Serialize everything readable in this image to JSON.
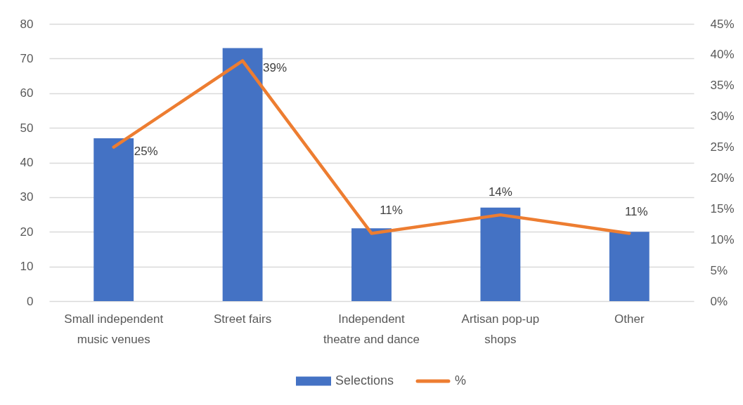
{
  "chart_data": {
    "type": "bar",
    "categories": [
      "Small independent music venues",
      "Street fairs",
      "Independent theatre and dance",
      "Artisan pop-up shops",
      "Other"
    ],
    "series": [
      {
        "name": "Selections",
        "color": "#4472c4",
        "values": [
          47,
          73,
          21,
          27,
          20
        ]
      },
      {
        "name": "%",
        "type": "line",
        "axis": "y2",
        "color": "#ed7d31",
        "values": [
          25,
          39,
          11,
          14,
          11
        ],
        "value_labels": [
          "25%",
          "39%",
          "11%",
          "14%",
          "11%"
        ]
      }
    ],
    "ylim": [
      0,
      80
    ],
    "yticks": [
      0,
      10,
      20,
      30,
      40,
      50,
      60,
      70,
      80
    ],
    "y2lim": [
      0,
      45
    ],
    "y2ticks": [
      {
        "value": 0,
        "label": "0%"
      },
      {
        "value": 5,
        "label": "5%"
      },
      {
        "value": 10,
        "label": "10%"
      },
      {
        "value": 15,
        "label": "15%"
      },
      {
        "value": 20,
        "label": "20%"
      },
      {
        "value": 25,
        "label": "25%"
      },
      {
        "value": 30,
        "label": "30%"
      },
      {
        "value": 35,
        "label": "35%"
      },
      {
        "value": 40,
        "label": "40%"
      },
      {
        "value": 45,
        "label": "45%"
      }
    ],
    "grid": "y",
    "legend": "bottom",
    "line_style": "solid"
  }
}
